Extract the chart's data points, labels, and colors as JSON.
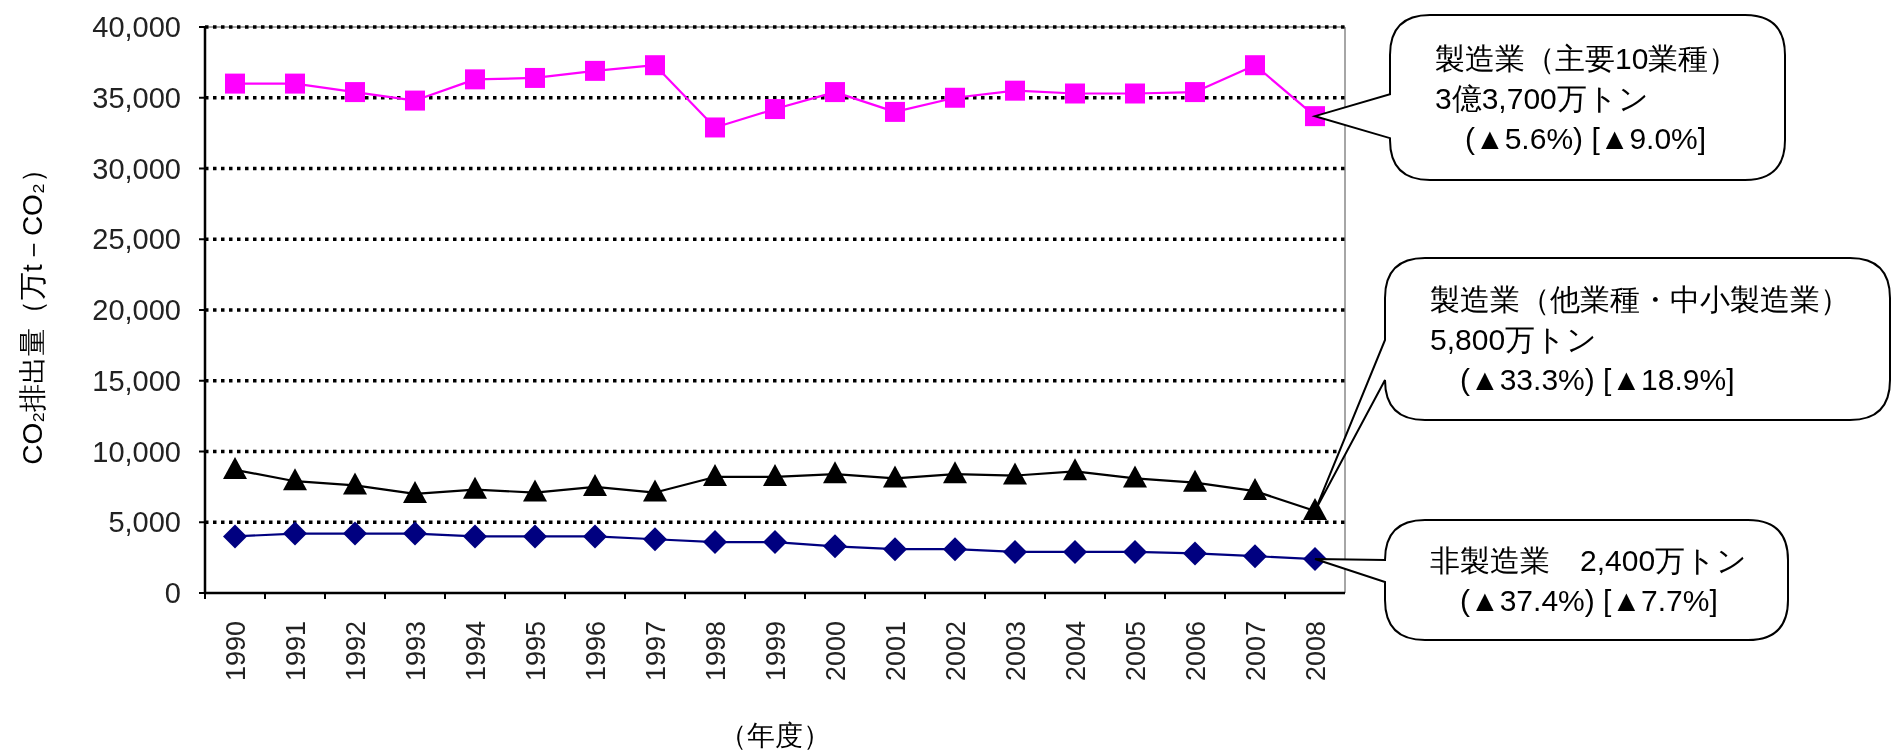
{
  "chart_data": {
    "type": "line",
    "ylabel": "CO₂排出量（万t－CO₂）",
    "xlabel": "（年度）",
    "categories": [
      "1990",
      "1991",
      "1992",
      "1993",
      "1994",
      "1995",
      "1996",
      "1997",
      "1998",
      "1999",
      "2000",
      "2001",
      "2002",
      "2003",
      "2004",
      "2005",
      "2006",
      "2007",
      "2008"
    ],
    "series": [
      {
        "color": "#ff00ff",
        "marker": "square",
        "values": [
          36000,
          36000,
          35400,
          34800,
          36300,
          36400,
          36900,
          37300,
          32900,
          34200,
          35400,
          34000,
          35000,
          35500,
          35300,
          35300,
          35400,
          37300,
          33700
        ]
      },
      {
        "color": "#000000",
        "marker": "triangle",
        "values": [
          8700,
          7900,
          7600,
          7000,
          7300,
          7100,
          7500,
          7100,
          8200,
          8200,
          8400,
          8100,
          8400,
          8300,
          8600,
          8100,
          7800,
          7200,
          5800
        ]
      },
      {
        "color": "#000080",
        "marker": "diamond",
        "values": [
          4000,
          4200,
          4200,
          4200,
          4000,
          4000,
          4000,
          3800,
          3600,
          3600,
          3300,
          3100,
          3100,
          2900,
          2900,
          2900,
          2800,
          2600,
          2400
        ]
      }
    ],
    "ylim": [
      0,
      40000
    ],
    "yticks": [
      {
        "value": 0,
        "label": "0"
      },
      {
        "value": 5000,
        "label": "5,000"
      },
      {
        "value": 10000,
        "label": "10,000"
      },
      {
        "value": 15000,
        "label": "15,000"
      },
      {
        "value": 20000,
        "label": "20,000"
      },
      {
        "value": 25000,
        "label": "25,000"
      },
      {
        "value": 30000,
        "label": "30,000"
      },
      {
        "value": 35000,
        "label": "35,000"
      },
      {
        "value": 40000,
        "label": "40,000"
      }
    ],
    "grid": "y",
    "annotations": [
      "製造業（主要10業種）\n3億3,700万トン\n　(▲5.6%) [▲9.0%]",
      "製造業（他業種・中小製造業）\n5,800万トン\n　(▲33.3%) [▲18.9%]",
      "非製造業　2,400万トン\n　(▲37.4%) [▲7.7%]"
    ]
  }
}
